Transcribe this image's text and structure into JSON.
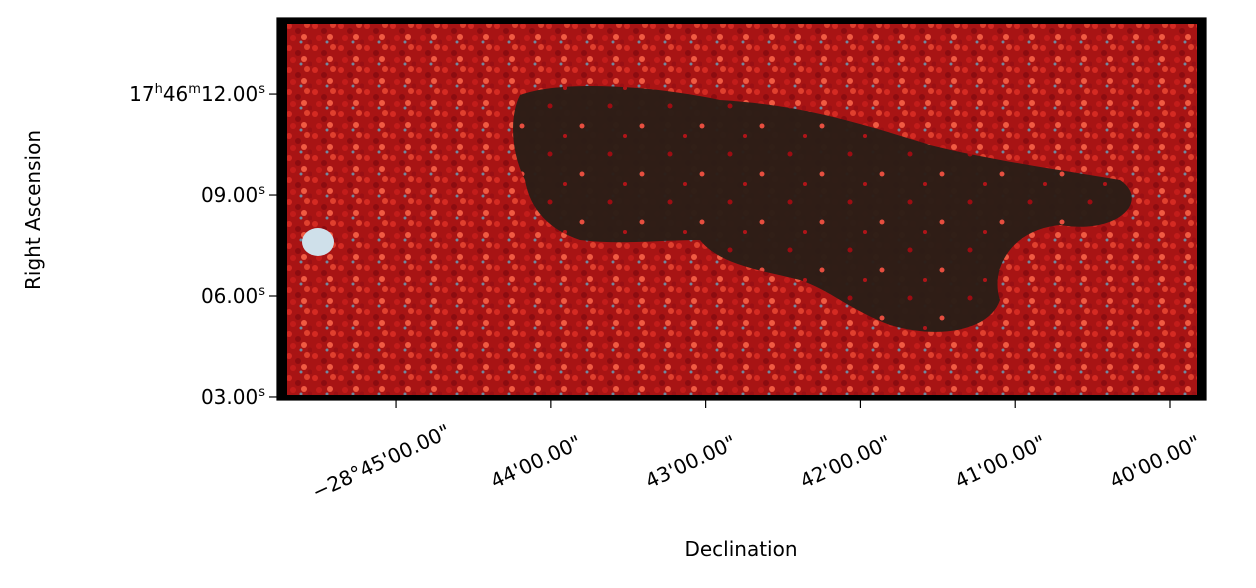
{
  "chart_data": {
    "type": "image",
    "xlabel": "Declination",
    "ylabel": "Right Ascension",
    "xlim": [
      -28.76282,
      -28.66279
    ],
    "ylim": [
      2.91,
      14.26
    ],
    "xticks": [
      {
        "value": -28.75,
        "label": "−28°45'00.00\""
      },
      {
        "value": -28.733333,
        "label": "44'00.00\""
      },
      {
        "value": -28.716667,
        "label": "43'00.00\""
      },
      {
        "value": -28.7,
        "label": "42'00.00\""
      },
      {
        "value": -28.683333,
        "label": "41'00.00\""
      },
      {
        "value": -28.666667,
        "label": "40'00.00\""
      }
    ],
    "yticks": [
      {
        "value": 12,
        "label": "17h46m12.00s"
      },
      {
        "value": 9,
        "label": "09.00s"
      },
      {
        "value": 6,
        "label": "06.00s"
      },
      {
        "value": 3,
        "label": "03.00s"
      }
    ]
  }
}
